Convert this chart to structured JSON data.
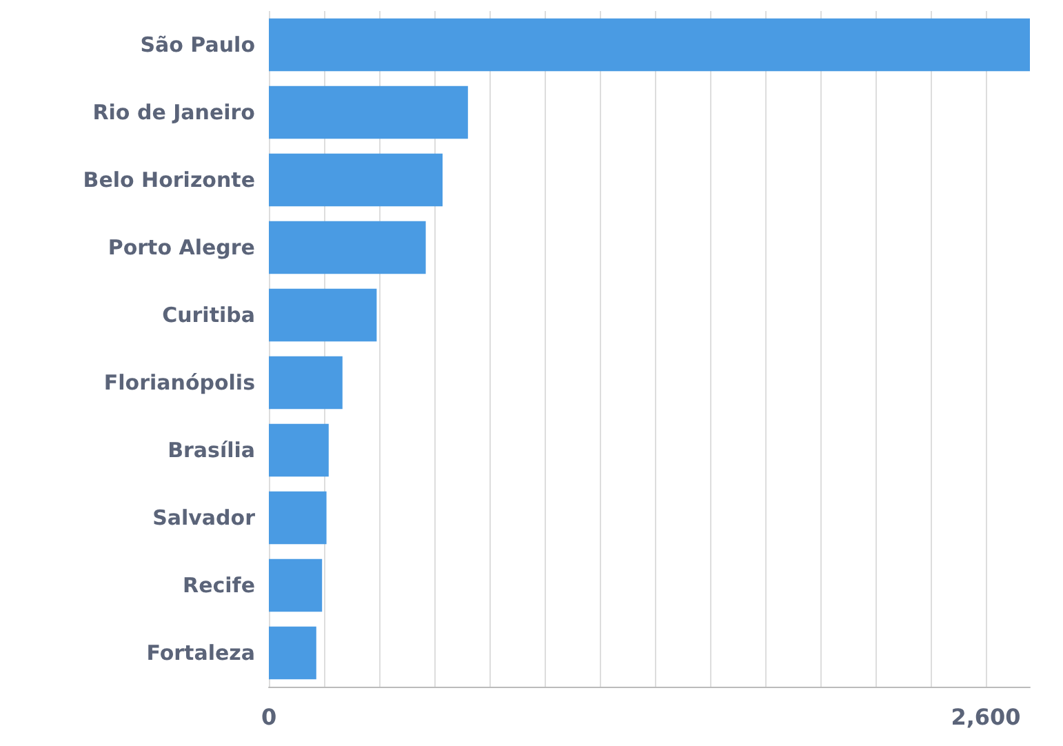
{
  "chart_data": {
    "type": "bar",
    "orientation": "horizontal",
    "categories": [
      "São Paulo",
      "Rio de Janeiro",
      "Belo Horizonte",
      "Porto Alegre",
      "Curitiba",
      "Florianópolis",
      "Brasília",
      "Salvador",
      "Recife",
      "Fortaleza"
    ],
    "values": [
      2760,
      722,
      630,
      569,
      391,
      267,
      217,
      209,
      193,
      172
    ],
    "color": "#4a9be3",
    "xlim": [
      0,
      2760
    ],
    "xticks": [
      0,
      {
        "value": 200,
        "label": null
      },
      {
        "value": 400,
        "label": null
      },
      {
        "value": 600,
        "label": null
      },
      {
        "value": 800,
        "label": null
      },
      {
        "value": 1000,
        "label": null
      },
      {
        "value": 1200,
        "label": null
      },
      {
        "value": 1400,
        "label": null
      },
      {
        "value": 1600,
        "label": null
      },
      {
        "value": 1800,
        "label": null
      },
      {
        "value": 2000,
        "label": null
      },
      {
        "value": 2200,
        "label": null
      },
      {
        "value": 2400,
        "label": null
      },
      {
        "value": 2600,
        "label": "2,600"
      }
    ],
    "grid": "x"
  }
}
